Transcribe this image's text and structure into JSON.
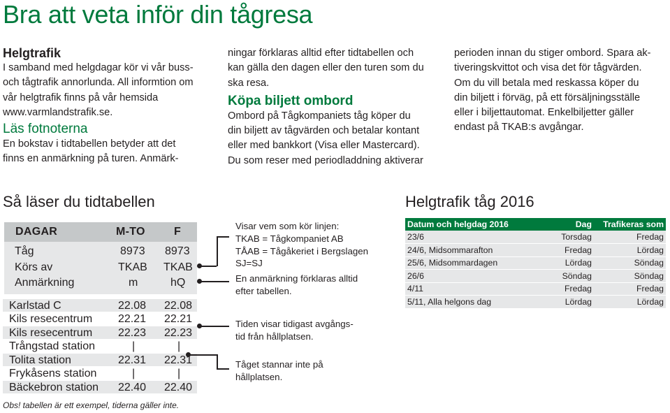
{
  "title": "Bra att veta inför din tågresa",
  "col1": {
    "h_helgtrafik": "Helgtrafik",
    "p1": [
      "I samband med helgdagar kör vi vår buss-",
      "och tågtrafik annorlunda. All informtion om",
      "vår helgtrafik finns på vår hemsida",
      "www.varmlandstrafik.se."
    ],
    "h_fotnoter": "Läs fotnoterna",
    "p2": [
      "En bokstav i tidtabellen betyder att det",
      "finns en anmärkning på turen. Anmärk-"
    ]
  },
  "col2": {
    "p1": [
      "ningar förklaras alltid efter tidtabellen och",
      "kan gälla den dagen eller den turen som du",
      "ska resa."
    ],
    "h_kopa": "Köpa biljett ombord",
    "p2": [
      "Ombord på Tågkompaniets tåg köper du",
      "din biljett av tågvärden och betalar kontant",
      "eller med bankkort (Visa eller Mastercard).",
      "Du som reser med periodladdning aktiverar"
    ]
  },
  "col3": {
    "p1": [
      "perioden innan du stiger ombord. Spara ak-",
      "tiveringskvittot och visa det för tågvärden.",
      "Om du vill betala med reskassa köper du",
      "din biljett i förväg, på ett försäljningsställe",
      "eller i biljettautomat. Enkelbiljetter gäller",
      "endast på TKAB:s avgångar."
    ]
  },
  "section_read": "Så läser du tidtabellen",
  "section_helg": "Helgtrafik tåg 2016",
  "timetable": {
    "head": [
      "DAGAR",
      "M-TO",
      "F"
    ],
    "info_rows": [
      [
        "Tåg",
        "8973",
        "8973"
      ],
      [
        "Körs av",
        "TKAB",
        "TKAB"
      ],
      [
        "Anmärkning",
        "m",
        "hQ"
      ]
    ],
    "stations": [
      [
        "Karlstad C",
        "22.08",
        "22.08"
      ],
      [
        "Kils resecentrum",
        "22.21",
        "22.21"
      ],
      [
        "Kils resecentrum",
        "22.23",
        "22.23"
      ],
      [
        "Trångstad station",
        "|",
        "|"
      ],
      [
        "Tolita station",
        "22.31",
        "22.31"
      ],
      [
        "Frykåsens station",
        "|",
        "|"
      ],
      [
        "Bäckebron station",
        "22.40",
        "22.40"
      ]
    ]
  },
  "notes": {
    "n1": [
      "Visar vem som kör linjen:",
      "TKAB = Tågkompaniet AB",
      "TÅAB = Tågåkeriet i Bergslagen",
      "SJ=SJ"
    ],
    "n2": [
      "En anmärkning förklaras alltid",
      "efter tabellen."
    ],
    "n3": [
      "Tiden visar tidigast avgångs-",
      "tid från hållplatsen."
    ],
    "n4": [
      "Tåget stannar inte på",
      "hållplatsen."
    ]
  },
  "footnote": "Obs! tabellen är ett exempel, tiderna gäller inte.",
  "helg_table": {
    "headers": [
      "Datum och helgdag 2016",
      "Dag",
      "Trafikeras som"
    ],
    "rows": [
      [
        "23/6",
        "Torsdag",
        "Fredag"
      ],
      [
        "24/6, Midsommarafton",
        "Fredag",
        "Lördag"
      ],
      [
        "25/6, Midsommardagen",
        "Lördag",
        "Söndag"
      ],
      [
        "26/6",
        "Söndag",
        "Söndag"
      ],
      [
        "4/11",
        "Fredag",
        "Fredag"
      ],
      [
        "5/11, Alla helgons dag",
        "Lördag",
        "Lördag"
      ]
    ]
  },
  "colors": {
    "accent_green": "#007a3d",
    "gray_light": "#e6e7e8",
    "gray_head": "#c5c8c9"
  }
}
